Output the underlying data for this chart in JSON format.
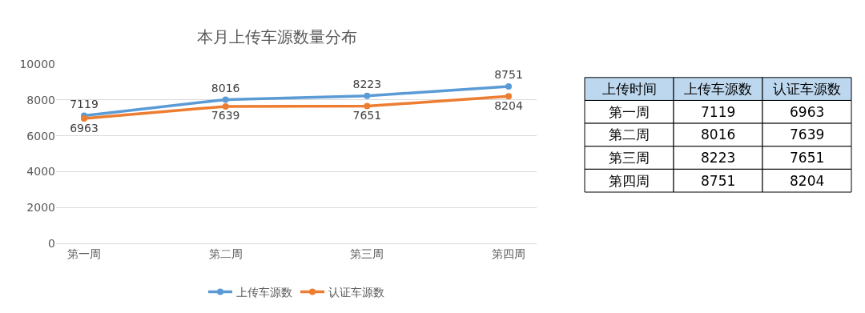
{
  "chart_data": [
    {
      "type": "line",
      "title": "本月上传车源数量分布",
      "categories": [
        "第一周",
        "第二周",
        "第三周",
        "第四周"
      ],
      "series": [
        {
          "name": "上传车源数",
          "color": "#5b9bd5",
          "values": [
            7119,
            8016,
            8223,
            8751
          ]
        },
        {
          "name": "认证车源数",
          "color": "#ed7d31",
          "values": [
            6963,
            7639,
            7651,
            8204
          ]
        }
      ],
      "ylim": [
        0,
        10000
      ],
      "yticks": [
        0,
        2000,
        4000,
        6000,
        8000,
        10000
      ],
      "grid": "y",
      "legend": "bottom",
      "marker": "circle",
      "line_style": "solid",
      "data_labels": true
    },
    {
      "type": "other",
      "xlabel": "上传时间",
      "categories": [
        "第一周",
        "第二周",
        "第三周",
        "第四周"
      ],
      "series": [
        {
          "name": "上传车源数",
          "values": [
            7119,
            8016,
            8223,
            8751
          ]
        },
        {
          "name": "认证车源数",
          "values": [
            6963,
            7639,
            7651,
            8204
          ]
        }
      ],
      "data_labels": true
    }
  ]
}
